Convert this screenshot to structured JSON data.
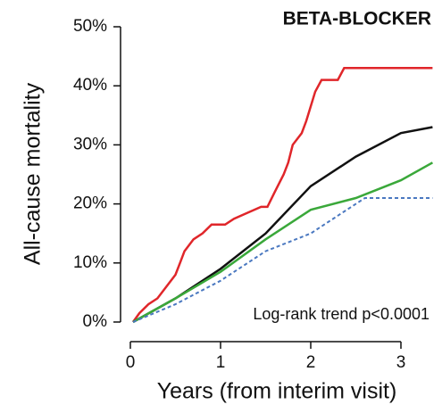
{
  "chart_data": {
    "type": "line",
    "title": "BETA-BLOCKER",
    "xlabel": "Years (from interim visit)",
    "ylabel": "All-cause mortality",
    "annotation": "Log-rank trend p<0.0001",
    "xlim": [
      0,
      3.35
    ],
    "xticks": [
      0,
      1,
      2,
      3
    ],
    "ylim": [
      0,
      50
    ],
    "yticks": [
      {
        "value": 0,
        "label": "0%"
      },
      {
        "value": 10,
        "label": "10%"
      },
      {
        "value": 20,
        "label": "20%"
      },
      {
        "value": 30,
        "label": "30%"
      },
      {
        "value": 40,
        "label": "40%"
      },
      {
        "value": 50,
        "label": "50%"
      }
    ],
    "series": [
      {
        "color": "#e0262a",
        "dash": false,
        "x": [
          0.03,
          0.1,
          0.2,
          0.3,
          0.4,
          0.5,
          0.55,
          0.6,
          0.7,
          0.8,
          0.9,
          1.05,
          1.15,
          1.3,
          1.45,
          1.52,
          1.6,
          1.7,
          1.75,
          1.8,
          1.9,
          1.95,
          2.05,
          2.12,
          2.3,
          2.37,
          3.35
        ],
        "values": [
          0,
          1.5,
          3,
          4,
          6,
          8,
          10,
          12,
          14,
          15,
          16.5,
          16.5,
          17.5,
          18.5,
          19.5,
          19.5,
          22,
          25,
          27,
          30,
          32,
          34,
          39,
          41,
          41,
          43,
          43
        ]
      },
      {
        "color": "#111111",
        "dash": false,
        "x": [
          0.03,
          0.5,
          1,
          1.5,
          2,
          2.5,
          3,
          3.35
        ],
        "values": [
          0,
          4,
          9,
          15,
          23,
          28,
          32,
          33
        ]
      },
      {
        "color": "#3aa83a",
        "dash": false,
        "x": [
          0.03,
          0.5,
          1,
          1.5,
          2,
          2.5,
          3,
          3.35
        ],
        "values": [
          0,
          4,
          8.5,
          14,
          19,
          21,
          24,
          27
        ]
      },
      {
        "color": "#4a78c0",
        "dash": true,
        "x": [
          0.03,
          0.5,
          1,
          1.5,
          2,
          2.3,
          2.6,
          3.35
        ],
        "values": [
          0,
          3,
          7,
          12,
          15,
          18,
          21,
          21
        ]
      }
    ]
  }
}
